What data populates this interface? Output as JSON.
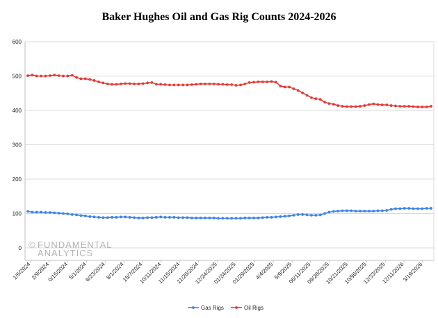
{
  "chart_data": {
    "type": "line",
    "title": "Baker Hughes Oil and Gas Rig Counts 2024-2026",
    "xlabel": "",
    "ylabel": "",
    "ylim": [
      0,
      600
    ],
    "y_ticks": [
      0,
      100,
      200,
      300,
      400,
      500,
      600
    ],
    "y_tick_labels": [
      "0",
      "100",
      "200",
      "300",
      "400",
      "500",
      "600"
    ],
    "x_tick_labels": [
      "1/5/2024",
      "2/9/2024",
      "0/15/2024",
      "5/1/2024",
      "6/23/2024",
      "8/1/2024",
      "15/7/2024",
      "10/11/2024",
      "11/15/2024",
      "11/20/2024",
      "12/24/2025",
      "01/24/2025",
      "01/29/2025",
      "4/4/2025",
      "5/9/2025",
      "06/11/2025",
      "09/28/2025",
      "10/21/2025",
      "10/96/2025",
      "12/33/2025",
      "12/11/2026",
      "3/19/2026"
    ],
    "grid": true,
    "legend_position": "bottom",
    "series": [
      {
        "name": "Gas Rigs",
        "color": "#3c82e6",
        "values": [
          106,
          104,
          104,
          104,
          103,
          103,
          102,
          101,
          100,
          99,
          97,
          96,
          94,
          93,
          91,
          90,
          89,
          88,
          88,
          89,
          89,
          90,
          90,
          89,
          88,
          87,
          87,
          88,
          88,
          89,
          90,
          89,
          89,
          89,
          88,
          88,
          88,
          87,
          87,
          87,
          87,
          87,
          87,
          86,
          86,
          86,
          86,
          86,
          86,
          87,
          87,
          87,
          87,
          88,
          89,
          89,
          90,
          91,
          92,
          93,
          95,
          97,
          97,
          96,
          95,
          95,
          96,
          100,
          104,
          106,
          107,
          108,
          108,
          108,
          107,
          107,
          107,
          107,
          107,
          108,
          108,
          109,
          112,
          114,
          114,
          115,
          115,
          114,
          114,
          114,
          115,
          115
        ]
      },
      {
        "name": "Oil Rigs",
        "color": "#e53935",
        "values": [
          501,
          503,
          500,
          500,
          500,
          501,
          503,
          501,
          500,
          500,
          502,
          496,
          492,
          492,
          490,
          487,
          483,
          480,
          477,
          476,
          476,
          477,
          478,
          478,
          477,
          477,
          478,
          480,
          481,
          476,
          476,
          475,
          474,
          474,
          474,
          474,
          474,
          475,
          476,
          477,
          477,
          477,
          477,
          476,
          476,
          475,
          475,
          473,
          474,
          477,
          481,
          482,
          483,
          483,
          483,
          484,
          482,
          471,
          468,
          468,
          463,
          458,
          451,
          444,
          437,
          434,
          432,
          424,
          420,
          418,
          414,
          412,
          411,
          411,
          411,
          412,
          414,
          417,
          419,
          417,
          416,
          416,
          414,
          413,
          412,
          412,
          412,
          411,
          410,
          410,
          410,
          412
        ]
      }
    ]
  },
  "watermark": {
    "line1": "FUNDAMENTAL",
    "line2": "ANALYTICS",
    "symbol": "©"
  }
}
